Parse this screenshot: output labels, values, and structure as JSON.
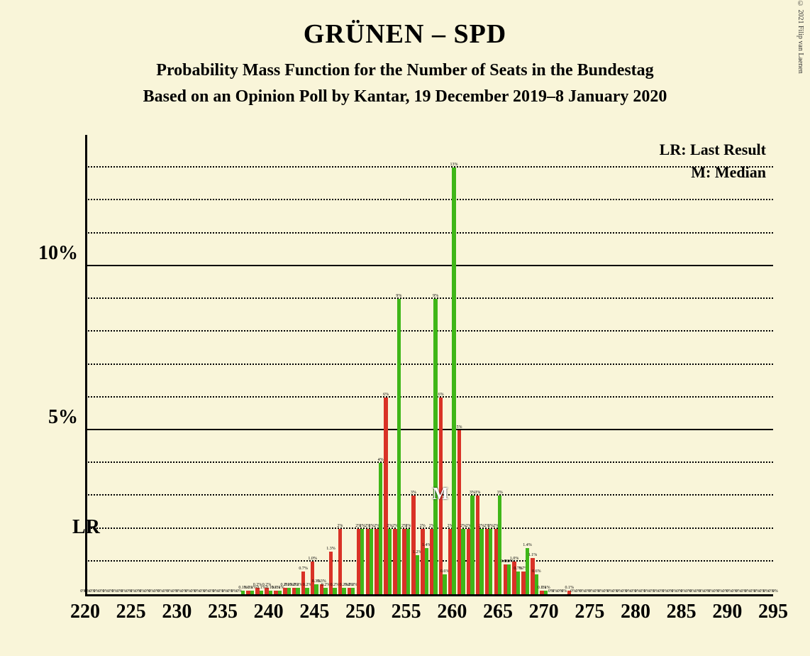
{
  "title": "GRÜNEN – SPD",
  "subtitle1": "Probability Mass Function for the Number of Seats in the Bundestag",
  "subtitle2": "Based on an Opinion Poll by Kantar, 19 December 2019–8 January 2020",
  "copyright": "© 2021 Filip van Laenen",
  "legend_lr": "LR: Last Result",
  "legend_m": "M: Median",
  "lr_text": "LR",
  "m_text": "M",
  "chart": {
    "type": "bar",
    "background_color": "#f9f5d9",
    "axis_color": "#000000",
    "grid_major_color": "#000000",
    "grid_minor_style": "dotted",
    "y_max": 14,
    "y_major_ticks": [
      5,
      10
    ],
    "y_major_labels": [
      "5%",
      "10%"
    ],
    "y_minor_ticks": [
      1,
      2,
      3,
      4,
      6,
      7,
      8,
      9,
      11,
      12,
      13
    ],
    "x_min": 220,
    "x_max": 295,
    "x_tick_step": 5,
    "x_ticks": [
      220,
      225,
      230,
      235,
      240,
      245,
      250,
      255,
      260,
      265,
      270,
      275,
      280,
      285,
      290,
      295
    ],
    "bar_colors": {
      "red": "#d93226",
      "green": "#3fb618"
    },
    "bar_width_ratio": 0.42,
    "lr_x": 220,
    "median_x": 265,
    "series": [
      {
        "x": 220,
        "r": 0,
        "g": 0,
        "rl": "0%",
        "gl": "0%"
      },
      {
        "x": 221,
        "r": 0,
        "g": 0,
        "rl": "0%",
        "gl": "0%"
      },
      {
        "x": 222,
        "r": 0,
        "g": 0,
        "rl": "0%",
        "gl": "0%"
      },
      {
        "x": 223,
        "r": 0,
        "g": 0,
        "rl": "0%",
        "gl": "0%"
      },
      {
        "x": 224,
        "r": 0,
        "g": 0,
        "rl": "0%",
        "gl": "0%"
      },
      {
        "x": 225,
        "r": 0,
        "g": 0,
        "rl": "0%",
        "gl": "0%"
      },
      {
        "x": 226,
        "r": 0,
        "g": 0,
        "rl": "0%",
        "gl": "0%"
      },
      {
        "x": 227,
        "r": 0,
        "g": 0,
        "rl": "0%",
        "gl": "0%"
      },
      {
        "x": 228,
        "r": 0,
        "g": 0,
        "rl": "0%",
        "gl": "0%"
      },
      {
        "x": 229,
        "r": 0,
        "g": 0,
        "rl": "0%",
        "gl": "0%"
      },
      {
        "x": 230,
        "r": 0,
        "g": 0,
        "rl": "0%",
        "gl": "0%"
      },
      {
        "x": 231,
        "r": 0,
        "g": 0,
        "rl": "0%",
        "gl": "0%"
      },
      {
        "x": 232,
        "r": 0,
        "g": 0,
        "rl": "0%",
        "gl": "0%"
      },
      {
        "x": 233,
        "r": 0,
        "g": 0,
        "rl": "0%",
        "gl": "0%"
      },
      {
        "x": 234,
        "r": 0,
        "g": 0,
        "rl": "0%",
        "gl": "0%"
      },
      {
        "x": 235,
        "r": 0,
        "g": 0,
        "rl": "0%",
        "gl": "0%"
      },
      {
        "x": 236,
        "r": 0,
        "g": 0,
        "rl": "0%",
        "gl": "0%"
      },
      {
        "x": 237,
        "r": 0,
        "g": 0.1,
        "rl": "0%",
        "gl": "0.1%"
      },
      {
        "x": 238,
        "r": 0.1,
        "g": 0.1,
        "rl": "0.1%",
        "gl": "0.1%"
      },
      {
        "x": 239,
        "r": 0.2,
        "g": 0.1,
        "rl": "0.2%",
        "gl": "0.1%"
      },
      {
        "x": 240,
        "r": 0.2,
        "g": 0.1,
        "rl": "0.2%",
        "gl": "0.1%"
      },
      {
        "x": 241,
        "r": 0.1,
        "g": 0.1,
        "rl": "0.1%",
        "gl": "0.1%"
      },
      {
        "x": 242,
        "r": 0.2,
        "g": 0.2,
        "rl": "0.2%",
        "gl": "0.2%"
      },
      {
        "x": 243,
        "r": 0.2,
        "g": 0.2,
        "rl": "0.2%",
        "gl": "0.2%"
      },
      {
        "x": 244,
        "r": 0.7,
        "g": 0.2,
        "rl": "0.7%",
        "gl": "0.2%"
      },
      {
        "x": 245,
        "r": 1.0,
        "g": 0.3,
        "rl": "1.0%",
        "gl": "0.3%"
      },
      {
        "x": 246,
        "r": 0.3,
        "g": 0.2,
        "rl": "0.3%",
        "gl": "0.2%"
      },
      {
        "x": 247,
        "r": 1.3,
        "g": 0.2,
        "rl": "1.3%",
        "gl": "0.2%"
      },
      {
        "x": 248,
        "r": 2,
        "g": 0.2,
        "rl": "2%",
        "gl": "0.2%"
      },
      {
        "x": 249,
        "r": 0.2,
        "g": 0.2,
        "rl": "0.2%",
        "gl": "0.2%"
      },
      {
        "x": 250,
        "r": 2,
        "g": 2,
        "rl": "2%",
        "gl": "2%"
      },
      {
        "x": 251,
        "r": 2,
        "g": 2,
        "rl": "2%",
        "gl": "2%"
      },
      {
        "x": 252,
        "r": 2,
        "g": 4,
        "rl": "2%",
        "gl": "4%"
      },
      {
        "x": 253,
        "r": 6,
        "g": 2,
        "rl": "6%",
        "gl": "2%"
      },
      {
        "x": 254,
        "r": 2,
        "g": 9,
        "rl": "2%",
        "gl": "9%"
      },
      {
        "x": 255,
        "r": 2,
        "g": 2,
        "rl": "2%",
        "gl": "2%"
      },
      {
        "x": 256,
        "r": 3,
        "g": 1.2,
        "rl": "3%",
        "gl": "1.2%"
      },
      {
        "x": 257,
        "r": 2,
        "g": 1.4,
        "rl": "2%",
        "gl": "1.4%"
      },
      {
        "x": 258,
        "r": 2,
        "g": 9,
        "rl": "2%",
        "gl": "9%"
      },
      {
        "x": 259,
        "r": 6,
        "g": 0.6,
        "rl": "6%",
        "gl": "0.6%"
      },
      {
        "x": 260,
        "r": 2,
        "g": 13,
        "rl": "2%",
        "gl": "13%"
      },
      {
        "x": 261,
        "r": 5,
        "g": 2,
        "rl": "5%",
        "gl": "2%"
      },
      {
        "x": 262,
        "r": 2,
        "g": 3,
        "rl": "2%",
        "gl": "3%"
      },
      {
        "x": 263,
        "r": 3,
        "g": 2,
        "rl": "3%",
        "gl": "2%"
      },
      {
        "x": 264,
        "r": 2,
        "g": 2,
        "rl": "2%",
        "gl": "2%"
      },
      {
        "x": 265,
        "r": 2,
        "g": 3,
        "rl": "2%",
        "gl": "3%"
      },
      {
        "x": 266,
        "r": 0.9,
        "g": 0.9,
        "rl": "0.9%",
        "gl": "0.9%"
      },
      {
        "x": 267,
        "r": 1.0,
        "g": 0.7,
        "rl": "1.0%",
        "gl": "0.7%"
      },
      {
        "x": 268,
        "r": 0.7,
        "g": 1.4,
        "rl": "0.7%",
        "gl": "1.4%"
      },
      {
        "x": 269,
        "r": 1.1,
        "g": 0.6,
        "rl": "1.1%",
        "gl": "0.6%"
      },
      {
        "x": 270,
        "r": 0.1,
        "g": 0.1,
        "rl": "0.1%",
        "gl": "0.1%"
      },
      {
        "x": 271,
        "r": 0,
        "g": 0,
        "rl": "0%",
        "gl": "0%"
      },
      {
        "x": 272,
        "r": 0,
        "g": 0,
        "rl": "0%",
        "gl": "0%"
      },
      {
        "x": 273,
        "r": 0.1,
        "g": 0,
        "rl": "0.1%",
        "gl": "0%"
      },
      {
        "x": 274,
        "r": 0,
        "g": 0,
        "rl": "0%",
        "gl": "0%"
      },
      {
        "x": 275,
        "r": 0,
        "g": 0,
        "rl": "0%",
        "gl": "0%"
      },
      {
        "x": 276,
        "r": 0,
        "g": 0,
        "rl": "0%",
        "gl": "0%"
      },
      {
        "x": 277,
        "r": 0,
        "g": 0,
        "rl": "0%",
        "gl": "0%"
      },
      {
        "x": 278,
        "r": 0,
        "g": 0,
        "rl": "0%",
        "gl": "0%"
      },
      {
        "x": 279,
        "r": 0,
        "g": 0,
        "rl": "0%",
        "gl": "0%"
      },
      {
        "x": 280,
        "r": 0,
        "g": 0,
        "rl": "0%",
        "gl": "0%"
      },
      {
        "x": 281,
        "r": 0,
        "g": 0,
        "rl": "0%",
        "gl": "0%"
      },
      {
        "x": 282,
        "r": 0,
        "g": 0,
        "rl": "0%",
        "gl": "0%"
      },
      {
        "x": 283,
        "r": 0,
        "g": 0,
        "rl": "0%",
        "gl": "0%"
      },
      {
        "x": 284,
        "r": 0,
        "g": 0,
        "rl": "0%",
        "gl": "0%"
      },
      {
        "x": 285,
        "r": 0,
        "g": 0,
        "rl": "0%",
        "gl": "0%"
      },
      {
        "x": 286,
        "r": 0,
        "g": 0,
        "rl": "0%",
        "gl": "0%"
      },
      {
        "x": 287,
        "r": 0,
        "g": 0,
        "rl": "0%",
        "gl": "0%"
      },
      {
        "x": 288,
        "r": 0,
        "g": 0,
        "rl": "0%",
        "gl": "0%"
      },
      {
        "x": 289,
        "r": 0,
        "g": 0,
        "rl": "0%",
        "gl": "0%"
      },
      {
        "x": 290,
        "r": 0,
        "g": 0,
        "rl": "0%",
        "gl": "0%"
      },
      {
        "x": 291,
        "r": 0,
        "g": 0,
        "rl": "0%",
        "gl": "0%"
      },
      {
        "x": 292,
        "r": 0,
        "g": 0,
        "rl": "0%",
        "gl": "0%"
      },
      {
        "x": 293,
        "r": 0,
        "g": 0,
        "rl": "0%",
        "gl": "0%"
      },
      {
        "x": 294,
        "r": 0,
        "g": 0,
        "rl": "0%",
        "gl": "0%"
      },
      {
        "x": 295,
        "r": 0,
        "g": 0,
        "rl": "0%",
        "gl": "0%"
      }
    ]
  }
}
